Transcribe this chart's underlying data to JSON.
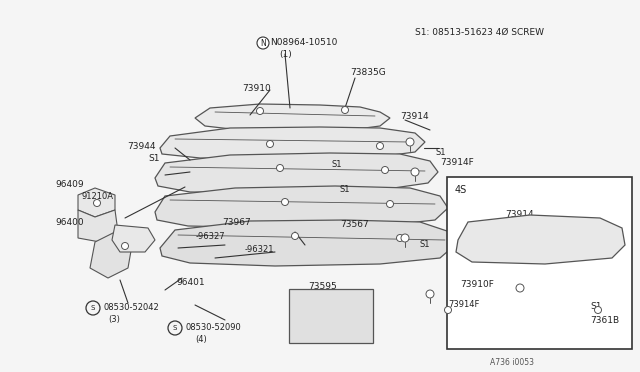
{
  "bg_color": "#f5f5f5",
  "line_color": "#555555",
  "dark_line": "#333333",
  "top_right_label": "S1: 08513-51623 4Ø SCREW",
  "nut_label": "N08964-10510",
  "nut_sub": "(1)",
  "diagram_number": "A736 i0053",
  "strip_fc": "#e8e8e8",
  "strip_ec": "#555555"
}
